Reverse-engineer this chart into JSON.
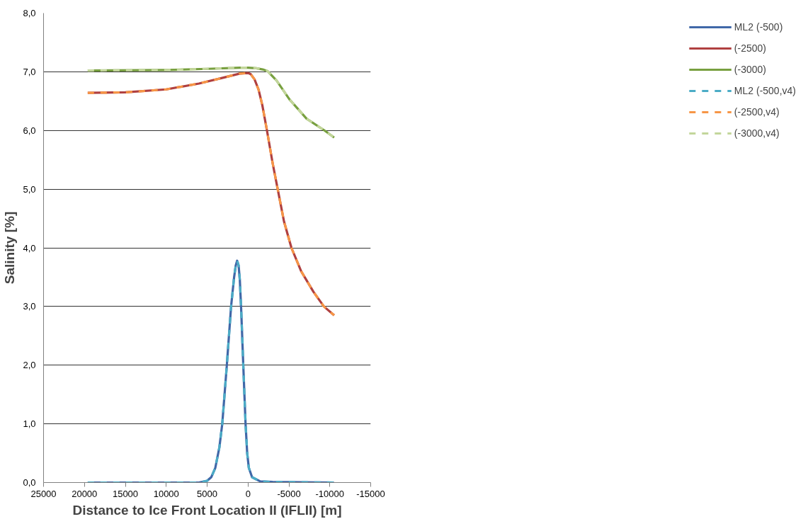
{
  "chart_data": {
    "type": "line",
    "xlabel": "Distance to Ice Front Location II (IFLII) [m]",
    "ylabel": "Salinity [%]",
    "xlim": [
      25000,
      -15000
    ],
    "xticks": [
      25000,
      20000,
      15000,
      10000,
      5000,
      0,
      -5000,
      -10000,
      -15000
    ],
    "ylim": [
      0,
      8
    ],
    "yticks": [
      {
        "value": 0,
        "label": "0,0"
      },
      {
        "value": 1,
        "label": "1,0"
      },
      {
        "value": 2,
        "label": "2,0"
      },
      {
        "value": 3,
        "label": "3,0"
      },
      {
        "value": 4,
        "label": "4,0"
      },
      {
        "value": 5,
        "label": "5,0"
      },
      {
        "value": 6,
        "label": "6,0"
      },
      {
        "value": 7,
        "label": "7,0"
      },
      {
        "value": 8,
        "label": "8,0"
      }
    ],
    "grid": "y",
    "legend": "right",
    "marker": "none",
    "series": [
      {
        "name": "ML2 (-500)",
        "color": "#4068a8",
        "line_style": "solid",
        "x": [
          19600,
          10000,
          6000,
          5000,
          4500,
          4000,
          3500,
          3150,
          2590,
          2070,
          1700,
          1500,
          1330,
          1150,
          1000,
          850,
          580,
          300,
          100,
          -100,
          -500,
          -1500,
          -3000,
          -10500
        ],
        "values": [
          0,
          0,
          0,
          0.03,
          0.09,
          0.25,
          0.6,
          1.0,
          2.0,
          3.0,
          3.5,
          3.7,
          3.78,
          3.7,
          3.45,
          3.0,
          2.0,
          1.0,
          0.5,
          0.25,
          0.09,
          0.02,
          0.01,
          0
        ]
      },
      {
        "name": "(-2500)",
        "color": "#b04040",
        "line_style": "solid",
        "x": [
          19600,
          15000,
          10000,
          6000,
          3000,
          1000,
          0,
          -330,
          -800,
          -1280,
          -1750,
          -2316,
          -3000,
          -3630,
          -4400,
          -5310,
          -6500,
          -8000,
          -9280,
          -10530
        ],
        "values": [
          6.64,
          6.65,
          6.7,
          6.8,
          6.9,
          6.97,
          6.98,
          6.96,
          6.87,
          6.7,
          6.43,
          6.0,
          5.45,
          5.0,
          4.45,
          4.0,
          3.6,
          3.25,
          3.0,
          2.85
        ]
      },
      {
        "name": "(-3000)",
        "color": "#78a040",
        "line_style": "solid",
        "x": [
          19600,
          10000,
          5000,
          1000,
          0,
          -1000,
          -1800,
          -2410,
          -3500,
          -5070,
          -7160,
          -9350,
          -10530
        ],
        "values": [
          7.02,
          7.03,
          7.05,
          7.07,
          7.07,
          7.06,
          7.04,
          7.01,
          6.85,
          6.53,
          6.2,
          6.0,
          5.88
        ]
      },
      {
        "name": "ML2 (-500,v4)",
        "color": "#4bacc6",
        "line_style": "dashed",
        "x": [
          19600,
          10000,
          6000,
          5000,
          4500,
          4000,
          3500,
          3150,
          2590,
          2070,
          1700,
          1500,
          1330,
          1150,
          1000,
          850,
          580,
          300,
          100,
          -100,
          -500,
          -1500,
          -3000,
          -10500
        ],
        "values": [
          0,
          0,
          0,
          0.03,
          0.09,
          0.25,
          0.6,
          1.0,
          2.0,
          3.0,
          3.5,
          3.7,
          3.78,
          3.7,
          3.45,
          3.0,
          2.0,
          1.0,
          0.5,
          0.25,
          0.09,
          0.02,
          0.01,
          0
        ]
      },
      {
        "name": "(-2500,v4)",
        "color": "#f79646",
        "line_style": "dashed",
        "x": [
          19600,
          15000,
          10000,
          6000,
          3000,
          1000,
          0,
          -330,
          -800,
          -1280,
          -1750,
          -2316,
          -3000,
          -3630,
          -4400,
          -5310,
          -6500,
          -8000,
          -9280,
          -10530
        ],
        "values": [
          6.64,
          6.65,
          6.7,
          6.8,
          6.9,
          6.97,
          6.98,
          6.96,
          6.87,
          6.7,
          6.43,
          6.0,
          5.45,
          5.0,
          4.45,
          4.0,
          3.6,
          3.25,
          3.0,
          2.85
        ]
      },
      {
        "name": "(-3000,v4)",
        "color": "#c3d69b",
        "line_style": "dashed",
        "x": [
          19600,
          10000,
          5000,
          1000,
          0,
          -1000,
          -1800,
          -2410,
          -3500,
          -5070,
          -7160,
          -9350,
          -10530
        ],
        "values": [
          7.02,
          7.03,
          7.05,
          7.07,
          7.07,
          7.06,
          7.04,
          7.01,
          6.85,
          6.53,
          6.2,
          6.0,
          5.88
        ]
      }
    ]
  }
}
